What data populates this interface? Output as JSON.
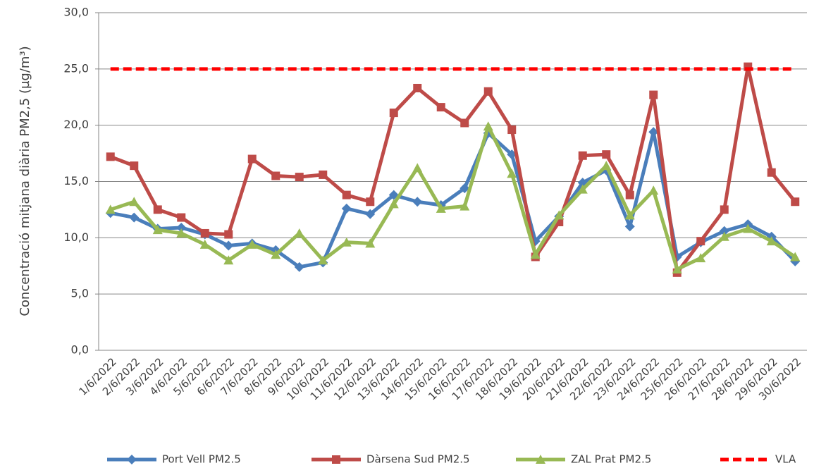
{
  "chart_data": {
    "type": "line",
    "y_label": "Concentració mitjana diària PM2,5 (µg/m³)",
    "categories": [
      "1/6/2022",
      "2/6/2022",
      "3/6/2022",
      "4/6/2022",
      "5/6/2022",
      "6/6/2022",
      "7/6/2022",
      "8/6/2022",
      "9/6/2022",
      "10/6/2022",
      "11/6/2022",
      "12/6/2022",
      "13/6/2022",
      "14/6/2022",
      "15/6/2022",
      "16/6/2022",
      "17/6/2022",
      "18/6/2022",
      "19/6/2022",
      "20/6/2022",
      "21/6/2022",
      "22/6/2022",
      "23/6/2022",
      "24/6/2022",
      "25/6/2022",
      "26/6/2022",
      "27/6/2022",
      "28/6/2022",
      "29/6/2022",
      "30/6/2022"
    ],
    "series": [
      {
        "name": "Port Vell PM2.5",
        "color": "#4a7ebb",
        "marker": "diamond",
        "dash": "solid",
        "values": [
          12.2,
          11.8,
          10.8,
          10.9,
          10.3,
          9.3,
          9.5,
          8.9,
          7.4,
          7.8,
          12.6,
          12.1,
          13.8,
          13.2,
          12.9,
          14.4,
          19.3,
          17.4,
          9.7,
          11.9,
          14.9,
          16.0,
          11.0,
          19.4,
          8.3,
          9.6,
          10.6,
          11.2,
          10.1,
          7.9
        ]
      },
      {
        "name": "Dàrsena Sud PM2.5",
        "color": "#be4b48",
        "marker": "square",
        "dash": "solid",
        "values": [
          17.2,
          16.4,
          12.5,
          11.8,
          10.4,
          10.3,
          17.0,
          15.5,
          15.4,
          15.6,
          13.8,
          13.2,
          21.1,
          23.3,
          21.6,
          20.2,
          23.0,
          19.6,
          8.3,
          11.4,
          17.3,
          17.4,
          13.8,
          22.7,
          6.9,
          9.7,
          12.5,
          25.2,
          15.8,
          13.2
        ]
      },
      {
        "name": "ZAL Prat PM2.5",
        "color": "#98b954",
        "marker": "triangle",
        "dash": "solid",
        "values": [
          12.5,
          13.2,
          10.7,
          10.4,
          9.4,
          8.0,
          9.4,
          8.5,
          10.4,
          8.0,
          9.6,
          9.5,
          13.0,
          16.2,
          12.6,
          12.8,
          19.9,
          15.7,
          8.5,
          12.0,
          14.3,
          16.4,
          12.0,
          14.2,
          7.2,
          8.2,
          10.1,
          10.8,
          9.7,
          8.3
        ]
      },
      {
        "name": "VLA",
        "color": "#ff0000",
        "marker": "none",
        "dash": "dashed",
        "values": [
          25,
          25,
          25,
          25,
          25,
          25,
          25,
          25,
          25,
          25,
          25,
          25,
          25,
          25,
          25,
          25,
          25,
          25,
          25,
          25,
          25,
          25,
          25,
          25,
          25,
          25,
          25,
          25,
          25,
          25
        ]
      }
    ],
    "ylim": [
      0,
      30
    ],
    "yticks": [
      {
        "value": 0,
        "label": "0,0"
      },
      {
        "value": 5,
        "label": "5,0"
      },
      {
        "value": 10,
        "label": "10,0"
      },
      {
        "value": 15,
        "label": "15,0"
      },
      {
        "value": 20,
        "label": "20,0"
      },
      {
        "value": 25,
        "label": "25,0"
      },
      {
        "value": 30,
        "label": "30,0"
      }
    ],
    "grid": true,
    "legend": "bottom"
  }
}
